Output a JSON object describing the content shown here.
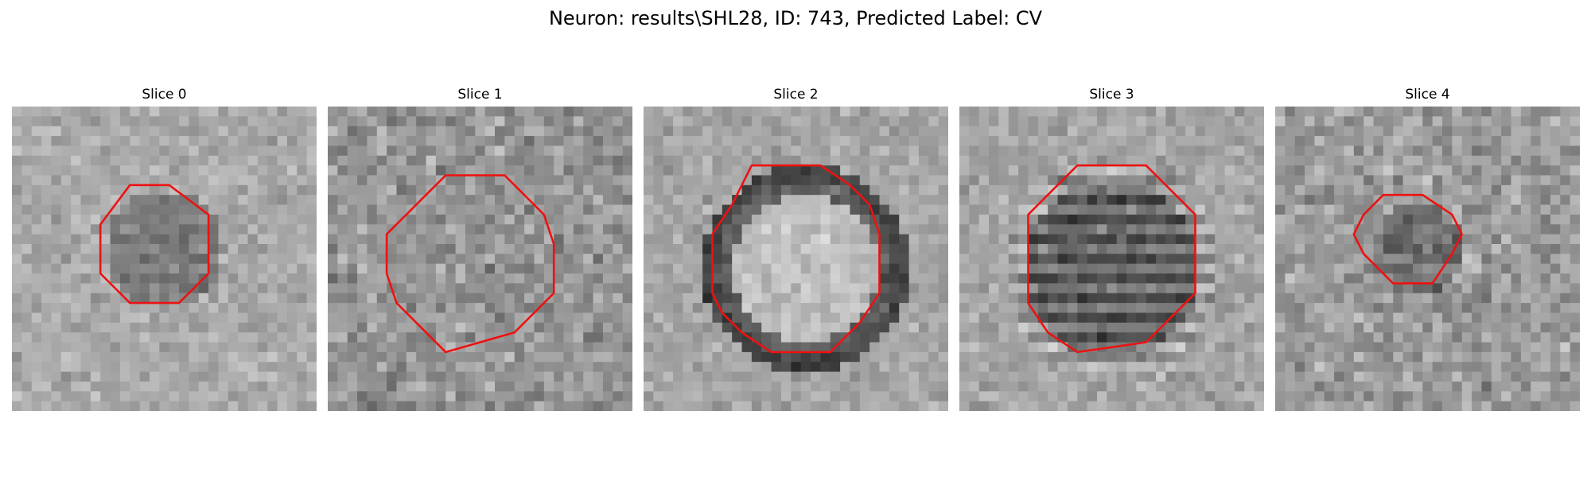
{
  "figure": {
    "suptitle": "Neuron: results\\SHL28, ID: 743, Predicted Label: CV"
  },
  "panels": [
    {
      "title": "Slice 0"
    },
    {
      "title": "Slice 1"
    },
    {
      "title": "Slice 2"
    },
    {
      "title": "Slice 3"
    },
    {
      "title": "Slice 4"
    }
  ],
  "colors": {
    "contour": "#ee1111"
  }
}
